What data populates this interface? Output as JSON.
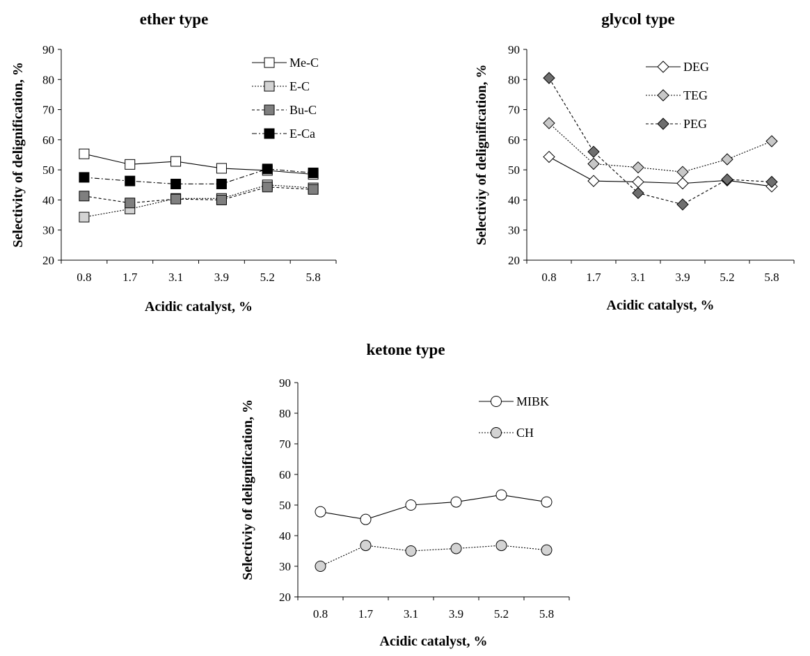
{
  "chart_data": [
    {
      "type": "line",
      "title": "ether type",
      "xlabel": "Acidic catalyst, %",
      "ylabel": "Selectivity of delignification, %",
      "categories": [
        "0.8",
        "1.7",
        "3.1",
        "3.9",
        "5.2",
        "5.8"
      ],
      "ylim": [
        20,
        90
      ],
      "yticks": [
        20,
        30,
        40,
        50,
        60,
        70,
        80,
        90
      ],
      "grid": false,
      "legend": "top-right",
      "series": [
        {
          "name": "Me-C",
          "values": [
            55.3,
            51.8,
            52.8,
            50.5,
            49.8,
            48.5
          ],
          "marker": "square",
          "fill": "#ffffff",
          "dash": "solid"
        },
        {
          "name": "E-C",
          "values": [
            34.3,
            37.0,
            40.5,
            40.5,
            45.0,
            44.0
          ],
          "marker": "square",
          "fill": "#d3d3d3",
          "dash": "dotted"
        },
        {
          "name": "Bu-C",
          "values": [
            41.3,
            39.0,
            40.3,
            40.0,
            44.3,
            43.5
          ],
          "marker": "square",
          "fill": "#7f7f7f",
          "dash": "dashed"
        },
        {
          "name": "E-Ca",
          "values": [
            47.5,
            46.3,
            45.3,
            45.3,
            50.3,
            49.0
          ],
          "marker": "square",
          "fill": "#000000",
          "dash": "dashdot"
        }
      ]
    },
    {
      "type": "line",
      "title": "glycol type",
      "xlabel": "Acidic catalyst, %",
      "ylabel": "Selectiviy of delignification, %",
      "categories": [
        "0.8",
        "1.7",
        "3.1",
        "3.9",
        "5.2",
        "5.8"
      ],
      "ylim": [
        20,
        90
      ],
      "yticks": [
        20,
        30,
        40,
        50,
        60,
        70,
        80,
        90
      ],
      "grid": false,
      "legend": "top-center",
      "series": [
        {
          "name": "DEG",
          "values": [
            54.3,
            46.3,
            46.0,
            45.5,
            46.5,
            44.5
          ],
          "marker": "diamond",
          "fill": "#ffffff",
          "dash": "solid"
        },
        {
          "name": "TEG",
          "values": [
            65.5,
            52.0,
            50.8,
            49.3,
            53.5,
            59.5
          ],
          "marker": "diamond",
          "fill": "#c8c8c8",
          "dash": "dotted"
        },
        {
          "name": "PEG",
          "values": [
            80.5,
            56.0,
            42.3,
            38.5,
            46.8,
            46.0
          ],
          "marker": "diamond",
          "fill": "#6e6e6e",
          "dash": "dashed"
        }
      ]
    },
    {
      "type": "line",
      "title": "ketone type",
      "xlabel": "Acidic catalyst, %",
      "ylabel": "Selectiviy of delignification, %",
      "categories": [
        "0.8",
        "1.7",
        "3.1",
        "3.9",
        "5.2",
        "5.8"
      ],
      "ylim": [
        20,
        90
      ],
      "yticks": [
        20,
        30,
        40,
        50,
        60,
        70,
        80,
        90
      ],
      "grid": false,
      "legend": "top-right",
      "series": [
        {
          "name": "MIBK",
          "values": [
            47.8,
            45.3,
            50.0,
            51.0,
            53.3,
            51.0
          ],
          "marker": "circle",
          "fill": "#ffffff",
          "dash": "solid"
        },
        {
          "name": "CH",
          "values": [
            30.0,
            36.8,
            35.0,
            35.8,
            36.8,
            35.3
          ],
          "marker": "circle",
          "fill": "#d3d3d3",
          "dash": "dotted"
        }
      ]
    }
  ]
}
